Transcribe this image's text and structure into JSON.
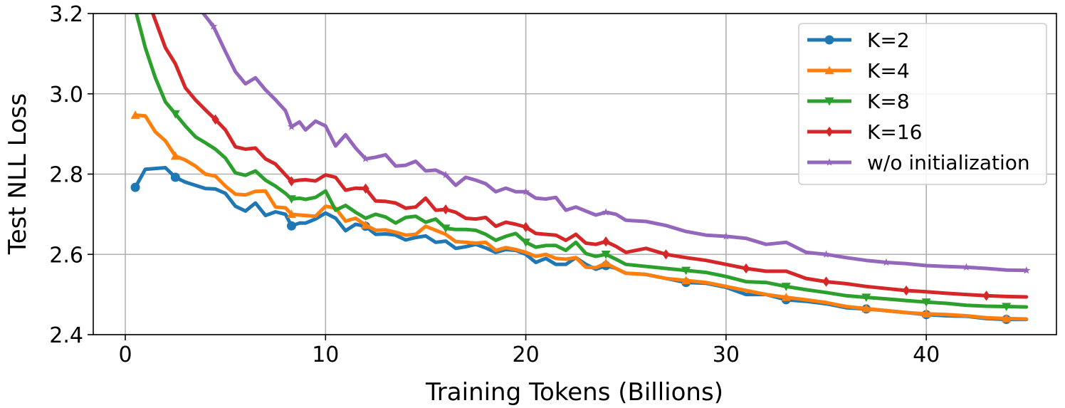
{
  "chart_data": {
    "type": "line",
    "xlabel": "Training Tokens (Billions)",
    "ylabel": "Test NLL Loss",
    "xlim": [
      -1.6,
      46.5
    ],
    "ylim": [
      2.4,
      3.2
    ],
    "xticks": [
      0,
      10,
      20,
      30,
      40
    ],
    "yticks": [
      2.4,
      2.6,
      2.8,
      3.0,
      3.2
    ],
    "xtick_labels": [
      "0",
      "10",
      "20",
      "30",
      "40"
    ],
    "ytick_labels": [
      "2.4",
      "2.6",
      "2.8",
      "3.0",
      "3.2"
    ],
    "grid": true,
    "legend_position": "top-right",
    "series": [
      {
        "name": "K=2",
        "color": "#1f77b4",
        "marker": "circle",
        "x": [
          0.5,
          1,
          1.5,
          2,
          2.5,
          3,
          3.5,
          4,
          4.5,
          5,
          5.5,
          6,
          6.5,
          7,
          7.5,
          8,
          8.3,
          8.7,
          9,
          9.5,
          10,
          10.5,
          11,
          11.5,
          12,
          12.5,
          13,
          13.5,
          14,
          14.5,
          15,
          15.5,
          16,
          16.5,
          17,
          17.5,
          18,
          18.5,
          19,
          19.5,
          20,
          20.5,
          21,
          21.5,
          22,
          22.5,
          23,
          23.5,
          24,
          24.5,
          25,
          26,
          27,
          28,
          29,
          30,
          31,
          32,
          33,
          34,
          35,
          36,
          37,
          38,
          39,
          40,
          41,
          42,
          43,
          44,
          45
        ],
        "y": [
          2.767,
          2.812,
          2.814,
          2.816,
          2.792,
          2.78,
          2.772,
          2.764,
          2.763,
          2.752,
          2.72,
          2.708,
          2.728,
          2.697,
          2.706,
          2.7,
          2.671,
          2.678,
          2.678,
          2.688,
          2.703,
          2.69,
          2.659,
          2.675,
          2.67,
          2.65,
          2.651,
          2.648,
          2.636,
          2.642,
          2.646,
          2.63,
          2.633,
          2.615,
          2.619,
          2.625,
          2.616,
          2.605,
          2.612,
          2.61,
          2.6,
          2.58,
          2.59,
          2.575,
          2.575,
          2.592,
          2.575,
          2.563,
          2.572,
          2.565,
          2.553,
          2.55,
          2.54,
          2.53,
          2.528,
          2.518,
          2.5,
          2.5,
          2.487,
          2.483,
          2.477,
          2.467,
          2.464,
          2.46,
          2.455,
          2.45,
          2.447,
          2.446,
          2.44,
          2.438,
          2.438
        ],
        "marker_indices": [
          0,
          4,
          16,
          24,
          48,
          53,
          58,
          62,
          65,
          69
        ]
      },
      {
        "name": "K=4",
        "color": "#ff7f0e",
        "marker": "triangle-up",
        "x": [
          0.5,
          1,
          1.5,
          2,
          2.5,
          3,
          3.5,
          4,
          4.5,
          5,
          5.5,
          6,
          6.5,
          7,
          7.5,
          8,
          8.3,
          8.7,
          9,
          9.5,
          10,
          10.5,
          11,
          11.5,
          12,
          12.5,
          13,
          13.5,
          14,
          14.5,
          15,
          15.5,
          16,
          16.5,
          17,
          17.5,
          18,
          18.5,
          19,
          19.5,
          20,
          20.5,
          21,
          21.5,
          22,
          22.5,
          23,
          23.5,
          24,
          24.5,
          25,
          26,
          27,
          28,
          29,
          30,
          31,
          32,
          33,
          34,
          35,
          36,
          37,
          38,
          39,
          40,
          41,
          42,
          43,
          44,
          45
        ],
        "y": [
          2.947,
          2.945,
          2.905,
          2.883,
          2.845,
          2.835,
          2.82,
          2.8,
          2.795,
          2.77,
          2.75,
          2.748,
          2.757,
          2.758,
          2.718,
          2.716,
          2.7,
          2.698,
          2.697,
          2.695,
          2.72,
          2.715,
          2.683,
          2.69,
          2.673,
          2.66,
          2.661,
          2.655,
          2.648,
          2.65,
          2.67,
          2.66,
          2.65,
          2.632,
          2.63,
          2.628,
          2.63,
          2.61,
          2.617,
          2.612,
          2.605,
          2.595,
          2.6,
          2.59,
          2.588,
          2.592,
          2.568,
          2.567,
          2.578,
          2.565,
          2.553,
          2.55,
          2.54,
          2.535,
          2.53,
          2.52,
          2.51,
          2.5,
          2.493,
          2.487,
          2.48,
          2.47,
          2.465,
          2.46,
          2.455,
          2.452,
          2.45,
          2.447,
          2.442,
          2.44,
          2.439
        ],
        "marker_indices": [
          0,
          4,
          16,
          24,
          48,
          53,
          58,
          62,
          65,
          69
        ]
      },
      {
        "name": "K=8",
        "color": "#2ca02c",
        "marker": "triangle-down",
        "x": [
          0.5,
          1,
          1.5,
          2,
          2.5,
          3,
          3.5,
          4,
          4.5,
          5,
          5.5,
          6,
          6.5,
          7,
          7.5,
          8,
          8.3,
          8.7,
          9,
          9.5,
          10,
          10.5,
          11,
          11.5,
          12,
          12.5,
          13,
          13.5,
          14,
          14.5,
          15,
          15.5,
          16,
          16.5,
          17,
          17.5,
          18,
          18.5,
          19,
          19.5,
          20,
          20.5,
          21,
          21.5,
          22,
          22.5,
          23,
          23.5,
          24,
          24.5,
          25,
          26,
          27,
          28,
          29,
          30,
          31,
          32,
          33,
          34,
          35,
          36,
          37,
          38,
          39,
          40,
          41,
          42,
          43,
          44,
          45
        ],
        "y": [
          3.21,
          3.115,
          3.04,
          2.98,
          2.95,
          2.92,
          2.893,
          2.878,
          2.862,
          2.84,
          2.803,
          2.797,
          2.808,
          2.785,
          2.77,
          2.752,
          2.738,
          2.74,
          2.737,
          2.742,
          2.758,
          2.71,
          2.722,
          2.705,
          2.69,
          2.7,
          2.693,
          2.678,
          2.692,
          2.695,
          2.68,
          2.688,
          2.665,
          2.662,
          2.662,
          2.66,
          2.65,
          2.635,
          2.645,
          2.652,
          2.63,
          2.618,
          2.622,
          2.622,
          2.61,
          2.63,
          2.602,
          2.595,
          2.6,
          2.588,
          2.575,
          2.57,
          2.565,
          2.56,
          2.555,
          2.545,
          2.532,
          2.53,
          2.52,
          2.512,
          2.505,
          2.497,
          2.493,
          2.489,
          2.485,
          2.481,
          2.478,
          2.473,
          2.471,
          2.47,
          2.469
        ],
        "marker_indices": [
          4,
          16,
          32,
          40,
          48,
          53,
          58,
          62,
          65,
          69
        ]
      },
      {
        "name": "K=16",
        "color": "#d62728",
        "marker": "diamond",
        "x": [
          1.3,
          2,
          2.5,
          3,
          3.5,
          4,
          4.5,
          5,
          5.5,
          6,
          6.5,
          7,
          7.5,
          8,
          8.3,
          8.7,
          9,
          9.5,
          10,
          10.5,
          11,
          11.5,
          12,
          12.5,
          13,
          13.5,
          14,
          14.5,
          15,
          15.5,
          16,
          16.5,
          17,
          17.5,
          18,
          18.5,
          19,
          19.5,
          20,
          20.5,
          21,
          21.5,
          22,
          22.5,
          23,
          23.5,
          24,
          24.5,
          25,
          26,
          27,
          28,
          29,
          30,
          31,
          32,
          33,
          34,
          35,
          36,
          37,
          38,
          39,
          40,
          41,
          42,
          43,
          44,
          45
        ],
        "y": [
          3.21,
          3.115,
          3.075,
          3.015,
          2.985,
          2.96,
          2.936,
          2.91,
          2.868,
          2.862,
          2.865,
          2.838,
          2.825,
          2.798,
          2.782,
          2.785,
          2.786,
          2.783,
          2.798,
          2.792,
          2.76,
          2.765,
          2.764,
          2.733,
          2.732,
          2.728,
          2.715,
          2.718,
          2.74,
          2.71,
          2.712,
          2.705,
          2.69,
          2.688,
          2.692,
          2.67,
          2.68,
          2.675,
          2.668,
          2.652,
          2.65,
          2.648,
          2.635,
          2.65,
          2.628,
          2.625,
          2.632,
          2.62,
          2.605,
          2.615,
          2.6,
          2.592,
          2.585,
          2.575,
          2.565,
          2.558,
          2.558,
          2.54,
          2.532,
          2.527,
          2.52,
          2.515,
          2.51,
          2.507,
          2.503,
          2.5,
          2.497,
          2.495,
          2.494
        ],
        "marker_indices": [
          6,
          14,
          22,
          30,
          38,
          46,
          50,
          54,
          58,
          62,
          66
        ]
      },
      {
        "name": "w/o initialization",
        "color": "#9467bd",
        "marker": "star",
        "x": [
          3.9,
          4.4,
          5,
          5.5,
          6,
          6.5,
          7,
          7.5,
          8,
          8.3,
          8.7,
          9,
          9.5,
          10,
          10.5,
          11,
          11.5,
          12,
          12.5,
          13,
          13.5,
          14,
          14.5,
          15,
          15.5,
          16,
          16.5,
          17,
          17.5,
          18,
          18.5,
          19,
          19.5,
          20,
          20.5,
          21,
          21.5,
          22,
          22.5,
          23,
          23.5,
          24,
          24.5,
          25,
          26,
          27,
          28,
          29,
          30,
          31,
          32,
          33,
          34,
          35,
          36,
          37,
          38,
          39,
          40,
          41,
          42,
          43,
          44,
          45
        ],
        "y": [
          3.2,
          3.168,
          3.105,
          3.055,
          3.025,
          3.04,
          3.01,
          2.985,
          2.958,
          2.918,
          2.93,
          2.91,
          2.932,
          2.92,
          2.87,
          2.898,
          2.865,
          2.838,
          2.842,
          2.848,
          2.82,
          2.822,
          2.832,
          2.808,
          2.81,
          2.798,
          2.772,
          2.792,
          2.785,
          2.776,
          2.756,
          2.765,
          2.756,
          2.756,
          2.74,
          2.738,
          2.742,
          2.71,
          2.718,
          2.708,
          2.698,
          2.705,
          2.7,
          2.685,
          2.682,
          2.672,
          2.657,
          2.648,
          2.645,
          2.64,
          2.625,
          2.63,
          2.605,
          2.6,
          2.592,
          2.585,
          2.58,
          2.577,
          2.572,
          2.57,
          2.568,
          2.565,
          2.561,
          2.56
        ],
        "marker_indices": [
          1,
          9,
          17,
          25,
          33,
          41,
          48,
          53,
          56,
          60,
          63
        ]
      }
    ]
  }
}
